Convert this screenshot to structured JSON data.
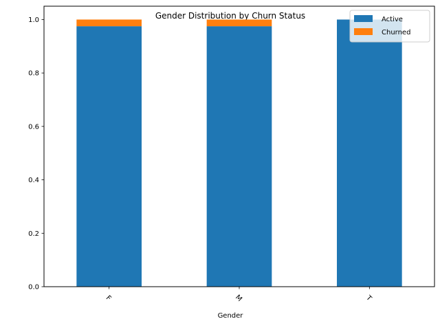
{
  "chart_data": {
    "type": "bar",
    "stacked": true,
    "title": "Gender Distribution by Churn Status",
    "xlabel": "Gender",
    "ylabel": "",
    "categories": [
      "F",
      "M",
      "T"
    ],
    "series": [
      {
        "name": "Active",
        "values": [
          0.975,
          0.975,
          1.0
        ],
        "color": "#1f77b4"
      },
      {
        "name": "Churned",
        "values": [
          0.025,
          0.025,
          0.0
        ],
        "color": "#ff7f0e"
      }
    ],
    "ylim": [
      0,
      1.05
    ],
    "yticks": [
      "0.0",
      "0.2",
      "0.4",
      "0.6",
      "0.8",
      "1.0"
    ],
    "xtick_rotation": 45,
    "grid": false,
    "legend_position": "top-right"
  }
}
